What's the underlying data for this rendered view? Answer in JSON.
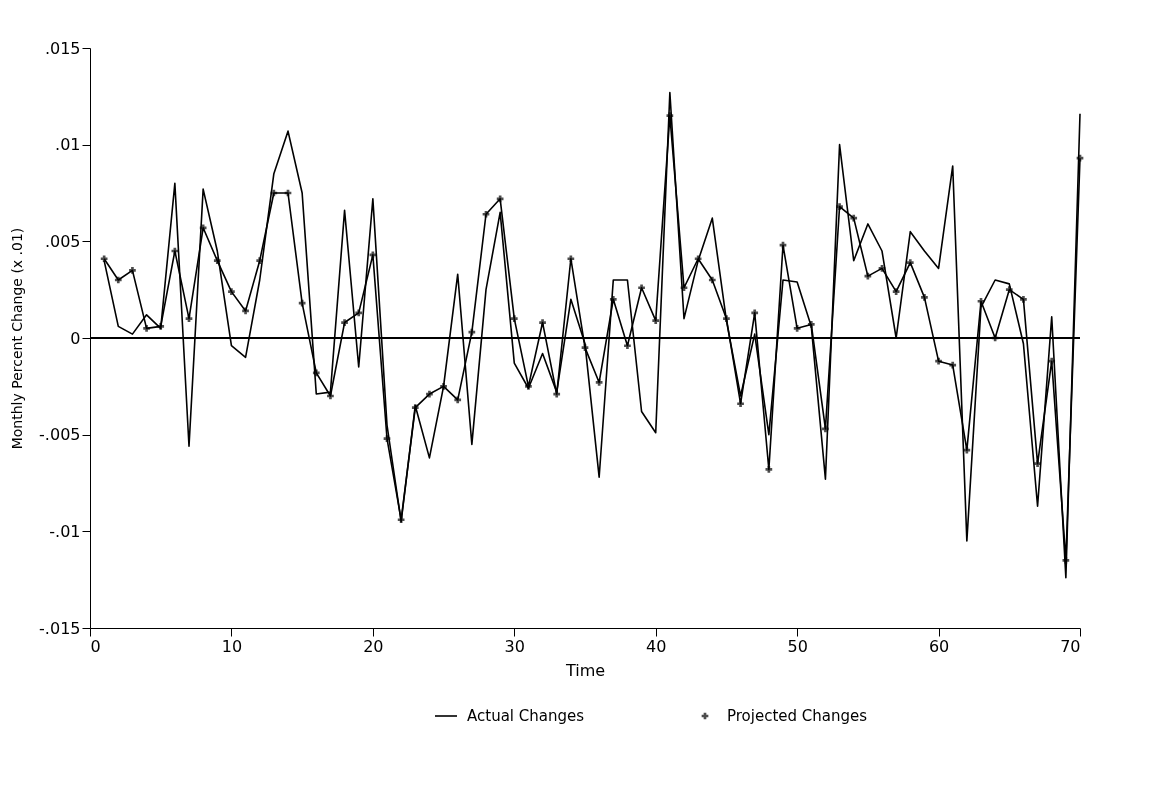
{
  "chart_data": {
    "type": "line",
    "xlabel": "Time",
    "ylabel": "Monthly Percent Change (x .01)",
    "x": [
      1,
      2,
      3,
      4,
      5,
      6,
      7,
      8,
      9,
      10,
      11,
      12,
      13,
      14,
      15,
      16,
      17,
      18,
      19,
      20,
      21,
      22,
      23,
      24,
      25,
      26,
      27,
      28,
      29,
      30,
      31,
      32,
      33,
      34,
      35,
      36,
      37,
      38,
      39,
      40,
      41,
      42,
      43,
      44,
      45,
      46,
      47,
      48,
      49,
      50,
      51,
      52,
      53,
      54,
      55,
      56,
      57,
      58,
      59,
      60,
      61,
      62,
      63,
      64,
      65,
      66,
      67,
      68,
      69,
      70
    ],
    "series": [
      {
        "name": "Actual Changes",
        "color": "#000000",
        "marker": "none",
        "values": [
          0.004,
          0.0006,
          0.0002,
          0.0012,
          0.0005,
          0.008,
          -0.0056,
          0.0077,
          0.0045,
          -0.0004,
          -0.001,
          0.003,
          0.0085,
          0.0107,
          0.0075,
          -0.0029,
          -0.0028,
          0.0066,
          -0.0015,
          0.0072,
          -0.0045,
          -0.0095,
          -0.0035,
          -0.0062,
          -0.0025,
          0.0033,
          -0.0055,
          0.0025,
          0.0065,
          -0.0013,
          -0.0026,
          -0.0008,
          -0.0028,
          0.002,
          -0.0003,
          -0.0072,
          0.003,
          0.003,
          -0.0038,
          -0.0049,
          0.0127,
          0.001,
          0.004,
          0.0062,
          0.0009,
          -0.003,
          0.0002,
          -0.005,
          0.003,
          0.0029,
          0.0006,
          -0.0073,
          0.01,
          0.004,
          0.0059,
          0.0045,
          0.0,
          0.0055,
          0.0045,
          0.0036,
          0.0089,
          -0.0105,
          0.0016,
          0.003,
          0.0028,
          -0.0003,
          -0.0087,
          0.0011,
          -0.0124,
          0.0116
        ]
      },
      {
        "name": "Projected Changes",
        "color": "#000000",
        "marker": "cross",
        "values": [
          0.0041,
          0.003,
          0.0035,
          0.0005,
          0.0006,
          0.0045,
          0.001,
          0.0057,
          0.004,
          0.0024,
          0.0014,
          0.004,
          0.0075,
          0.0075,
          0.0018,
          -0.0018,
          -0.003,
          0.0008,
          0.0013,
          0.0043,
          -0.0052,
          -0.0094,
          -0.0036,
          -0.0029,
          -0.0025,
          -0.0032,
          0.0003,
          0.0064,
          0.0072,
          0.001,
          -0.0025,
          0.0008,
          -0.0029,
          0.0041,
          -0.0005,
          -0.0023,
          0.002,
          -0.0004,
          0.0026,
          0.0009,
          0.0115,
          0.0026,
          0.0041,
          0.003,
          0.001,
          -0.0034,
          0.0013,
          -0.0068,
          0.0048,
          0.0005,
          0.0007,
          -0.0047,
          0.0068,
          0.0062,
          0.0032,
          0.0036,
          0.0024,
          0.0039,
          0.0021,
          -0.0012,
          -0.0014,
          -0.0058,
          0.0019,
          0.0,
          0.0025,
          0.002,
          -0.0065,
          -0.0012,
          -0.0115,
          0.0093
        ]
      }
    ],
    "xlim": [
      0,
      70
    ],
    "xticks": [
      0,
      10,
      20,
      30,
      40,
      50,
      60,
      70
    ],
    "ylim": [
      -0.015,
      0.015
    ],
    "yticks": [
      {
        "value": -0.015,
        "label": "-.015"
      },
      {
        "value": -0.01,
        "label": "-.01"
      },
      {
        "value": -0.005,
        "label": "-.005"
      },
      {
        "value": 0,
        "label": "0"
      },
      {
        "value": 0.005,
        "label": ".005"
      },
      {
        "value": 0.01,
        "label": ".01"
      },
      {
        "value": 0.015,
        "label": ".015"
      }
    ],
    "ref_lines": [
      {
        "axis": "y",
        "value": 0,
        "color": "#000000"
      }
    ],
    "grid": false,
    "legend": "bottom",
    "line_style": "solid"
  }
}
